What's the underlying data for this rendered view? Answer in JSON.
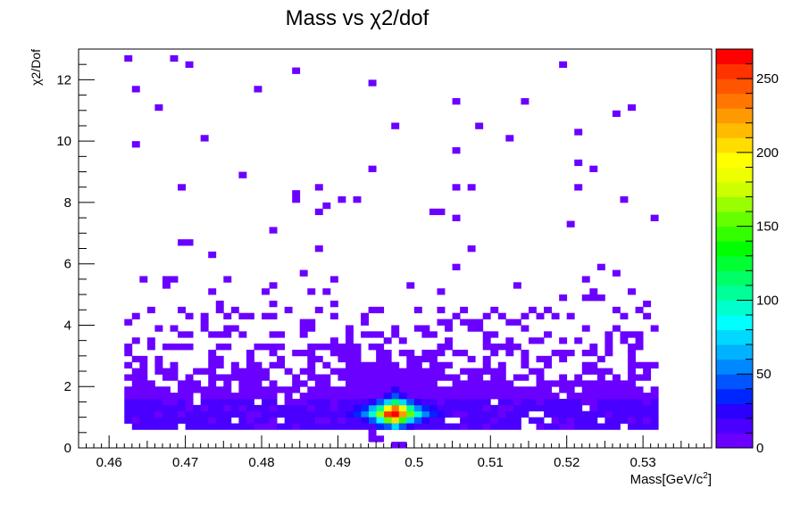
{
  "chart_data": {
    "type": "heatmap",
    "title": "Mass vs χ2/dof",
    "xlabel": "Mass[GeV/c",
    "xlabel_sup": "2",
    "xlabel_end": "]",
    "ylabel": "χ2/Dof",
    "xlim": [
      0.456,
      0.539
    ],
    "ylim": [
      0,
      13
    ],
    "x_ticks": [
      "0.46",
      "0.47",
      "0.48",
      "0.49",
      "0.5",
      "0.51",
      "0.52",
      "0.53"
    ],
    "y_ticks": [
      "0",
      "2",
      "4",
      "6",
      "8",
      "10",
      "12"
    ],
    "colorbar": {
      "range": [
        0,
        270
      ],
      "ticks": [
        "0",
        "50",
        "100",
        "150",
        "200",
        "250"
      ],
      "colors": [
        "#6a00ff",
        "#4a00ff",
        "#2b00ff",
        "#0026ff",
        "#0055ff",
        "#0088ff",
        "#00b2ff",
        "#00d8ff",
        "#00ffff",
        "#00ffcc",
        "#00ff99",
        "#00ff66",
        "#00ff33",
        "#00ff00",
        "#33ff00",
        "#66ff00",
        "#99ff00",
        "#ccff00",
        "#eeff00",
        "#ffff00",
        "#ffdd00",
        "#ffbb00",
        "#ff9900",
        "#ff7700",
        "#ff5500",
        "#ff3300",
        "#ff0000"
      ]
    },
    "bin_width_x": 0.001,
    "bin_width_y": 0.2,
    "peak": {
      "x": 0.497,
      "y": 1.0,
      "value": 270
    },
    "bins": [
      [
        0.4975,
        1.0,
        270
      ],
      [
        0.4965,
        1.0,
        250
      ],
      [
        0.4985,
        1.0,
        220
      ],
      [
        0.4975,
        1.2,
        230
      ],
      [
        0.4975,
        0.8,
        200
      ],
      [
        0.4955,
        1.0,
        160
      ],
      [
        0.4995,
        1.0,
        150
      ],
      [
        0.4965,
        1.2,
        190
      ],
      [
        0.4985,
        1.2,
        180
      ],
      [
        0.4965,
        0.8,
        150
      ],
      [
        0.4985,
        0.8,
        140
      ],
      [
        0.4945,
        1.0,
        95
      ],
      [
        0.5005,
        1.0,
        90
      ],
      [
        0.4975,
        1.4,
        110
      ],
      [
        0.4975,
        0.6,
        70
      ],
      [
        0.4955,
        1.2,
        105
      ],
      [
        0.4995,
        1.2,
        100
      ],
      [
        0.4955,
        0.8,
        80
      ],
      [
        0.4995,
        0.8,
        75
      ],
      [
        0.4935,
        1.0,
        55
      ],
      [
        0.5015,
        1.0,
        50
      ],
      [
        0.4945,
        1.2,
        60
      ],
      [
        0.5005,
        1.2,
        55
      ],
      [
        0.4965,
        1.4,
        75
      ],
      [
        0.4985,
        1.4,
        70
      ],
      [
        0.4925,
        1.0,
        35
      ],
      [
        0.5025,
        1.0,
        30
      ],
      [
        0.4935,
        1.2,
        38
      ],
      [
        0.5015,
        1.2,
        35
      ],
      [
        0.4945,
        0.8,
        45
      ],
      [
        0.5005,
        0.8,
        42
      ],
      [
        0.4955,
        1.4,
        45
      ],
      [
        0.4995,
        1.4,
        42
      ],
      [
        0.4975,
        1.6,
        40
      ],
      [
        0.4915,
        1.0,
        22
      ],
      [
        0.5035,
        1.0,
        20
      ],
      [
        0.4965,
        1.6,
        28
      ],
      [
        0.4985,
        1.6,
        26
      ],
      [
        0.4945,
        1.4,
        25
      ],
      [
        0.5005,
        1.4,
        24
      ],
      [
        0.4965,
        0.6,
        45
      ],
      [
        0.4985,
        0.6,
        42
      ],
      [
        0.4955,
        0.6,
        30
      ],
      [
        0.4995,
        0.6,
        28
      ],
      [
        0.4935,
        0.8,
        26
      ],
      [
        0.5015,
        0.8,
        24
      ],
      [
        0.4925,
        1.2,
        22
      ],
      [
        0.5025,
        1.2,
        20
      ],
      [
        0.4905,
        1.0,
        14
      ],
      [
        0.5045,
        1.0,
        13
      ],
      [
        0.4975,
        1.8,
        22
      ],
      [
        0.4925,
        0.8,
        15
      ],
      [
        0.5025,
        0.8,
        14
      ],
      [
        0.4935,
        1.4,
        15
      ],
      [
        0.5015,
        1.4,
        14
      ]
    ]
  }
}
